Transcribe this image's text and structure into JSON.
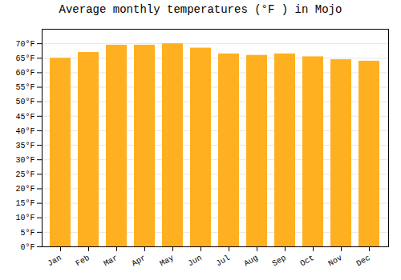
{
  "chart_data": {
    "type": "bar",
    "title": "Average monthly temperatures (°F ) in Mojo",
    "categories": [
      "Jan",
      "Feb",
      "Mar",
      "Apr",
      "May",
      "Jun",
      "Jul",
      "Aug",
      "Sep",
      "Oct",
      "Nov",
      "Dec"
    ],
    "values": [
      65,
      67,
      69.5,
      69.5,
      70,
      68.5,
      66.5,
      66,
      66.5,
      65.5,
      64.5,
      64
    ],
    "color": "#FFB020",
    "ylim": [
      0,
      75
    ],
    "yticks": [
      {
        "value": 0,
        "label": "0°F"
      },
      {
        "value": 5,
        "label": "5°F"
      },
      {
        "value": 10,
        "label": "10°F"
      },
      {
        "value": 15,
        "label": "15°F"
      },
      {
        "value": 20,
        "label": "20°F"
      },
      {
        "value": 25,
        "label": "25°F"
      },
      {
        "value": 30,
        "label": "30°F"
      },
      {
        "value": 35,
        "label": "35°F"
      },
      {
        "value": 40,
        "label": "40°F"
      },
      {
        "value": 45,
        "label": "45°F"
      },
      {
        "value": 50,
        "label": "50°F"
      },
      {
        "value": 55,
        "label": "55°F"
      },
      {
        "value": 60,
        "label": "60°F"
      },
      {
        "value": 65,
        "label": "65°F"
      },
      {
        "value": 70,
        "label": "70°F"
      }
    ],
    "grid": true
  }
}
